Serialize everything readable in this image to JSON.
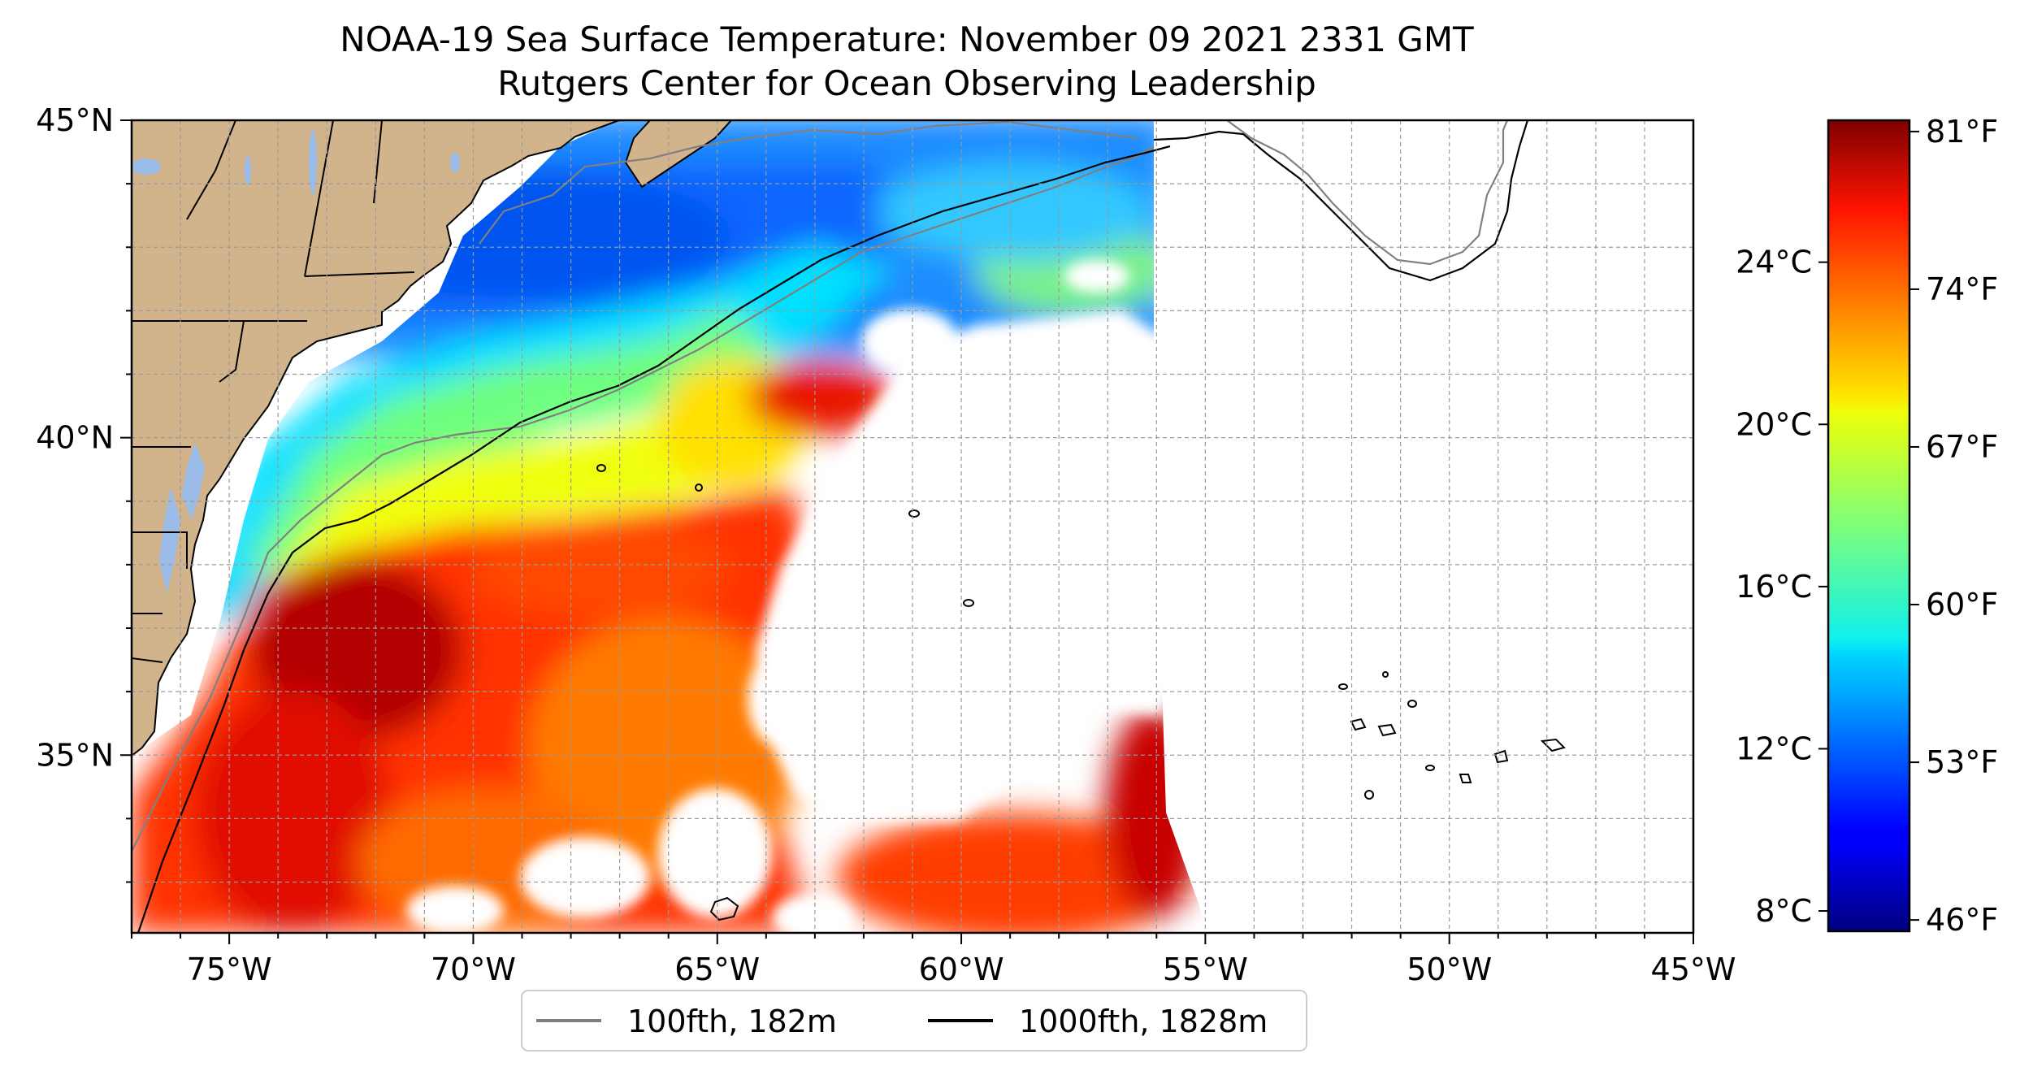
{
  "title": "NOAA-19 Sea Surface Temperature: November 09 2021 2331 GMT",
  "subtitle": "Rutgers Center for Ocean Observing Leadership",
  "map": {
    "lon_range": [
      -77,
      -45
    ],
    "lat_range": [
      32.2,
      45
    ],
    "lon_ticks": [
      {
        "value": -75,
        "label": "75°W"
      },
      {
        "value": -70,
        "label": "70°W"
      },
      {
        "value": -65,
        "label": "65°W"
      },
      {
        "value": -60,
        "label": "60°W"
      },
      {
        "value": -55,
        "label": "55°W"
      },
      {
        "value": -50,
        "label": "50°W"
      },
      {
        "value": -45,
        "label": "45°W"
      }
    ],
    "lat_ticks": [
      {
        "value": 45,
        "label": "45°N"
      },
      {
        "value": 40,
        "label": "40°N"
      },
      {
        "value": 35,
        "label": "35°N"
      }
    ],
    "grid": true,
    "grid_step_deg": 1,
    "land_color": "#d2b48c",
    "lake_color": "#9bbbe8",
    "no_data_color": "#ffffff"
  },
  "legend": {
    "placement": "bottom-center",
    "items": [
      {
        "label": "100fth, 182m",
        "color": "#808080"
      },
      {
        "label": "1000fth, 1828m",
        "color": "#000000"
      }
    ]
  },
  "colorbar": {
    "colormap": "jet",
    "range_c": [
      7.5,
      27.5
    ],
    "celsius_ticks": [
      {
        "value": 8,
        "label": "8°C"
      },
      {
        "value": 12,
        "label": "12°C"
      },
      {
        "value": 16,
        "label": "16°C"
      },
      {
        "value": 20,
        "label": "20°C"
      },
      {
        "value": 24,
        "label": "24°C"
      }
    ],
    "fahrenheit_ticks": [
      {
        "value": 46,
        "label": "46°F"
      },
      {
        "value": 53,
        "label": "53°F"
      },
      {
        "value": 60,
        "label": "60°F"
      },
      {
        "value": 67,
        "label": "67°F"
      },
      {
        "value": 74,
        "label": "74°F"
      },
      {
        "value": 81,
        "label": "81°F"
      }
    ]
  }
}
